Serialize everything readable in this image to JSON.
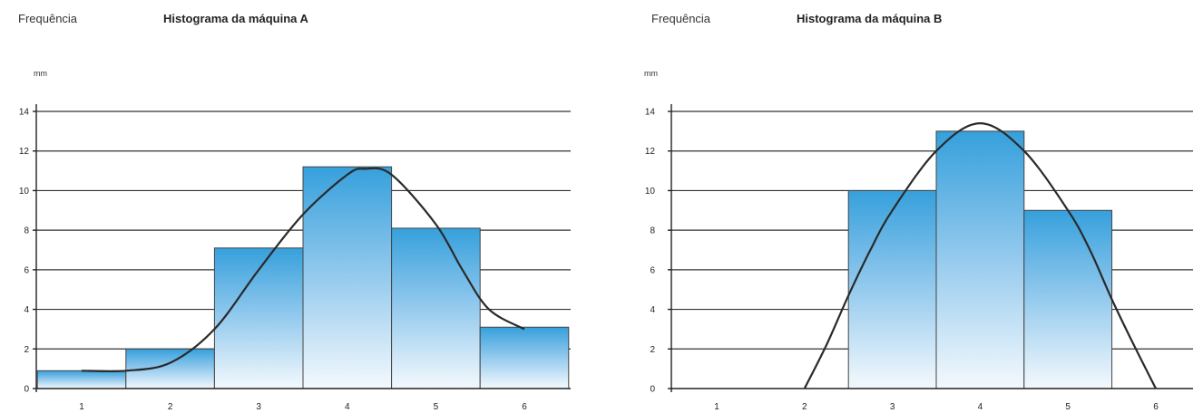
{
  "chart_data": [
    {
      "type": "bar",
      "title": "Histograma da máquina A",
      "ylabel_top": "Frequência",
      "unit": "mm",
      "yticks": [
        "0",
        "2",
        "4",
        "6",
        "8",
        "10",
        "12",
        "14"
      ],
      "ylim": [
        0,
        14
      ],
      "categories": [
        "1",
        "2",
        "3",
        "4",
        "5",
        "6"
      ],
      "bars": [
        {
          "category": "1",
          "value": 0.9
        },
        {
          "category": "2",
          "value": 2
        },
        {
          "category": "3",
          "value": 7.1
        },
        {
          "category": "4",
          "value": 11.2
        },
        {
          "category": "5",
          "value": 8.1
        },
        {
          "category": "6",
          "value": 3.1
        }
      ],
      "curve": [
        [
          1.0,
          0.9
        ],
        [
          1.5,
          0.9
        ],
        [
          2.0,
          1.3
        ],
        [
          2.5,
          3.0
        ],
        [
          3.0,
          6.0
        ],
        [
          3.5,
          8.8
        ],
        [
          4.0,
          10.8
        ],
        [
          4.2,
          11.1
        ],
        [
          4.5,
          10.8
        ],
        [
          5.0,
          8.3
        ],
        [
          5.3,
          6.0
        ],
        [
          5.6,
          4.0
        ],
        [
          6.0,
          3.0
        ]
      ],
      "grid": true,
      "bar_color": "#3ba3de"
    },
    {
      "type": "bar",
      "title": "Histograma da máquina B",
      "ylabel_top": "Frequência",
      "unit": "mm",
      "yticks": [
        "0",
        "2",
        "4",
        "6",
        "8",
        "10",
        "12",
        "14"
      ],
      "ylim": [
        0,
        14
      ],
      "categories": [
        "1",
        "2",
        "3",
        "4",
        "5",
        "6"
      ],
      "bars": [
        {
          "category": "3",
          "value": 10
        },
        {
          "category": "4",
          "value": 13
        },
        {
          "category": "5",
          "value": 9
        }
      ],
      "curve": [
        [
          2.0,
          0
        ],
        [
          2.25,
          2.2
        ],
        [
          2.5,
          4.7
        ],
        [
          2.75,
          7.0
        ],
        [
          3.0,
          9.0
        ],
        [
          3.5,
          12.0
        ],
        [
          4.0,
          13.4
        ],
        [
          4.5,
          12.0
        ],
        [
          5.0,
          9.0
        ],
        [
          5.25,
          7.0
        ],
        [
          5.5,
          4.5
        ],
        [
          5.75,
          2.2
        ],
        [
          6.0,
          0
        ]
      ],
      "grid": true,
      "bar_color": "#3ba3de"
    }
  ]
}
